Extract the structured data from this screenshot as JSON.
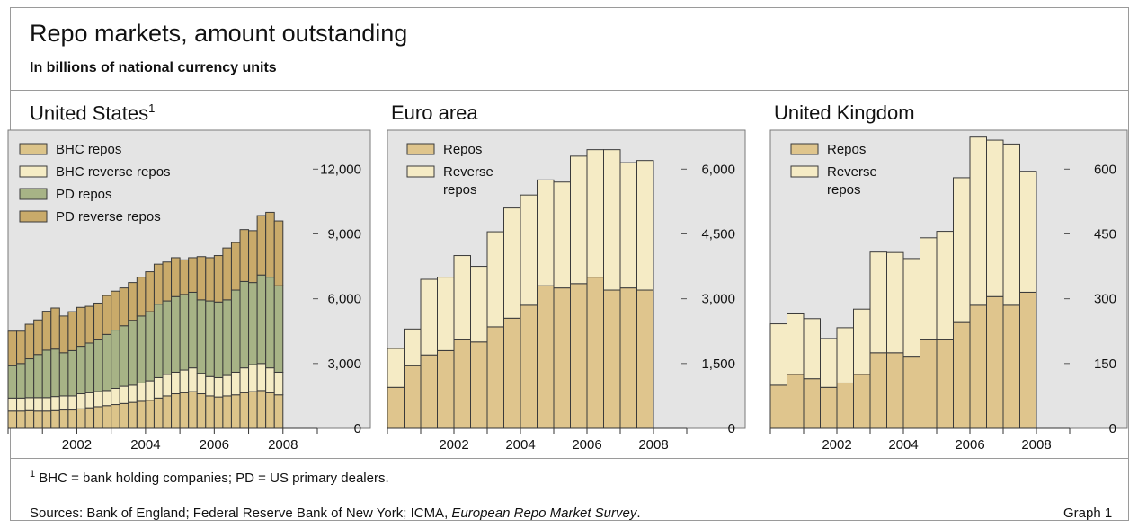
{
  "header": {
    "title": "Repo markets, amount outstanding",
    "subtitle": "In billions of national currency units"
  },
  "footer": {
    "footnote_mark": "1",
    "footnote": "BHC = bank holding companies; PD = US primary dealers.",
    "sources_prefix": "Sources: Bank of England; Federal Reserve Bank of New York; ICMA, ",
    "sources_italic": "European Repo Market Survey",
    "sources_suffix": ".",
    "graph_label": "Graph 1"
  },
  "colors": {
    "plot_bg": "#e4e4e4",
    "bhc_repos": "#dcc48a",
    "bhc_reverse": "#f5ecc5",
    "pd_repos": "#a7b386",
    "pd_reverse": "#c9aa6a",
    "repos": "#dfc58d",
    "reverse": "#f5ebc5",
    "edge": "#3a3a3a"
  },
  "chart_data": [
    {
      "type": "bar",
      "stacked": true,
      "title": "United States",
      "title_sup": "1",
      "xlim": [
        2000.0,
        2009.0
      ],
      "ylim": [
        0,
        13800
      ],
      "yticks": [
        0,
        3000,
        6000,
        9000,
        12000
      ],
      "ytick_labels": [
        "0",
        "3,000",
        "6,000",
        "9,000",
        "12,000"
      ],
      "xticks": [
        2002,
        2004,
        2006,
        2008
      ],
      "xtick_labels": [
        "2002",
        "2004",
        "2006",
        "2008"
      ],
      "legend_position": "top-left",
      "x": [
        2000.125,
        2000.375,
        2000.625,
        2000.875,
        2001.125,
        2001.375,
        2001.625,
        2001.875,
        2002.125,
        2002.375,
        2002.625,
        2002.875,
        2003.125,
        2003.375,
        2003.625,
        2003.875,
        2004.125,
        2004.375,
        2004.625,
        2004.875,
        2005.125,
        2005.375,
        2005.625,
        2005.875,
        2006.125,
        2006.375,
        2006.625,
        2006.875,
        2007.125,
        2007.375,
        2007.625,
        2007.875
      ],
      "series": [
        {
          "name": "BHC repos",
          "color_key": "bhc_repos",
          "values": [
            800,
            800,
            820,
            800,
            800,
            820,
            850,
            850,
            900,
            950,
            1000,
            1050,
            1100,
            1150,
            1200,
            1250,
            1300,
            1400,
            1500,
            1600,
            1650,
            1700,
            1600,
            1500,
            1450,
            1500,
            1550,
            1650,
            1700,
            1750,
            1650,
            1550
          ]
        },
        {
          "name": "BHC reverse repos",
          "color_key": "bhc_reverse",
          "values": [
            600,
            600,
            600,
            620,
            620,
            650,
            650,
            650,
            700,
            700,
            700,
            700,
            750,
            800,
            800,
            850,
            900,
            950,
            1000,
            1000,
            1050,
            1100,
            950,
            900,
            900,
            950,
            1050,
            1150,
            1250,
            1250,
            1150,
            1050
          ]
        },
        {
          "name": "PD repos",
          "color_key": "pd_repos",
          "values": [
            1500,
            1600,
            1800,
            2000,
            2200,
            2200,
            2000,
            2100,
            2200,
            2300,
            2400,
            2600,
            2700,
            2800,
            3000,
            3100,
            3200,
            3400,
            3400,
            3500,
            3500,
            3500,
            3400,
            3500,
            3500,
            3500,
            3800,
            4000,
            3800,
            4100,
            4200,
            4000
          ]
        },
        {
          "name": "PD reverse repos",
          "color_key": "pd_reverse",
          "values": [
            1600,
            1500,
            1600,
            1600,
            1800,
            1900,
            1700,
            1800,
            1800,
            1700,
            1700,
            1800,
            1800,
            1750,
            1750,
            1800,
            1850,
            1850,
            1800,
            1800,
            1600,
            1600,
            2000,
            2000,
            2150,
            2400,
            2200,
            2400,
            2400,
            2750,
            3000,
            3000
          ]
        }
      ]
    },
    {
      "type": "bar",
      "stacked": true,
      "title": "Euro area",
      "xlim": [
        2000.0,
        2009.0
      ],
      "ylim": [
        0,
        6900
      ],
      "yticks": [
        0,
        1500,
        3000,
        4500,
        6000
      ],
      "ytick_labels": [
        "0",
        "1,500",
        "3,000",
        "4,500",
        "6,000"
      ],
      "xticks": [
        2002,
        2004,
        2006,
        2008
      ],
      "xtick_labels": [
        "2002",
        "2004",
        "2006",
        "2008"
      ],
      "legend_position": "top-left",
      "x": [
        2000.25,
        2000.75,
        2001.25,
        2001.75,
        2002.25,
        2002.75,
        2003.25,
        2003.75,
        2004.25,
        2004.75,
        2005.25,
        2005.75,
        2006.25,
        2006.75,
        2007.25,
        2007.75
      ],
      "series": [
        {
          "name": "Repos",
          "color_key": "repos",
          "values": [
            950,
            1450,
            1700,
            1800,
            2050,
            2000,
            2350,
            2550,
            2850,
            3300,
            3250,
            3350,
            3500,
            3200,
            3250,
            3200
          ]
        },
        {
          "name": "Reverse repos",
          "color_key": "reverse",
          "values": [
            900,
            850,
            1750,
            1700,
            1950,
            1750,
            2200,
            2550,
            2550,
            2450,
            2450,
            2950,
            2950,
            3250,
            2900,
            3000
          ]
        }
      ]
    },
    {
      "type": "bar",
      "stacked": true,
      "title": "United Kingdom",
      "xlim": [
        2000.0,
        2009.0
      ],
      "ylim": [
        0,
        690
      ],
      "yticks": [
        0,
        150,
        300,
        450,
        600
      ],
      "ytick_labels": [
        "0",
        "150",
        "300",
        "450",
        "600"
      ],
      "xticks": [
        2002,
        2004,
        2006,
        2008
      ],
      "xtick_labels": [
        "2002",
        "2004",
        "2006",
        "2008"
      ],
      "legend_position": "top-left",
      "x": [
        2000.25,
        2000.75,
        2001.25,
        2001.75,
        2002.25,
        2002.75,
        2003.25,
        2003.75,
        2004.25,
        2004.75,
        2005.25,
        2005.75,
        2006.25,
        2006.75,
        2007.25,
        2007.75
      ],
      "series": [
        {
          "name": "Repos",
          "color_key": "repos",
          "values": [
            100,
            125,
            115,
            95,
            105,
            125,
            175,
            175,
            165,
            205,
            205,
            245,
            285,
            305,
            285,
            315
          ]
        },
        {
          "name": "Reverse repos",
          "color_key": "reverse",
          "values": [
            142,
            140,
            139,
            113,
            128,
            151,
            233,
            232,
            228,
            236,
            251,
            335,
            389,
            362,
            373,
            280
          ]
        }
      ]
    }
  ]
}
